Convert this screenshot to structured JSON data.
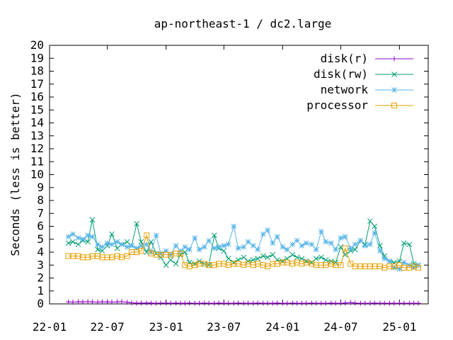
{
  "chart_data": {
    "type": "line",
    "title": "ap-northeast-1 / dc2.large",
    "xlabel": "",
    "ylabel": "Seconds (less is better)",
    "x_type": "date",
    "xlim": [
      "2022-01-01",
      "2025-04-01"
    ],
    "ylim": [
      0,
      20
    ],
    "yticks": [
      0,
      1,
      2,
      3,
      4,
      5,
      6,
      7,
      8,
      9,
      10,
      11,
      12,
      13,
      14,
      15,
      16,
      17,
      18,
      19,
      20
    ],
    "xticks": [
      {
        "value": "2022-01-01",
        "label": "22-01"
      },
      {
        "value": "2022-07-01",
        "label": "22-07"
      },
      {
        "value": "2023-01-01",
        "label": "23-01"
      },
      {
        "value": "2023-07-01",
        "label": "23-07"
      },
      {
        "value": "2024-01-01",
        "label": "24-01"
      },
      {
        "value": "2024-07-01",
        "label": "24-07"
      },
      {
        "value": "2025-01-01",
        "label": "25-01"
      }
    ],
    "grid": false,
    "legend_position": "top-right",
    "series": [
      {
        "name": "disk(r)",
        "color": "#9400d3",
        "marker": "plus",
        "x": [
          "2022-03-01",
          "2022-03-15",
          "2022-04-01",
          "2022-04-15",
          "2022-05-01",
          "2022-05-15",
          "2022-06-01",
          "2022-06-15",
          "2022-07-01",
          "2022-07-15",
          "2022-08-01",
          "2022-08-15",
          "2022-09-01",
          "2022-09-15",
          "2022-10-01",
          "2022-10-15",
          "2022-11-01",
          "2022-11-15",
          "2022-12-01",
          "2022-12-15",
          "2023-01-01",
          "2023-01-15",
          "2023-02-01",
          "2023-02-15",
          "2023-03-01",
          "2023-03-15",
          "2023-04-01",
          "2023-04-15",
          "2023-05-01",
          "2023-05-15",
          "2023-06-01",
          "2023-06-15",
          "2023-07-01",
          "2023-07-15",
          "2023-08-01",
          "2023-08-15",
          "2023-09-01",
          "2023-09-15",
          "2023-10-01",
          "2023-10-15",
          "2023-11-01",
          "2023-11-15",
          "2023-12-01",
          "2023-12-15",
          "2024-01-01",
          "2024-01-15",
          "2024-02-01",
          "2024-02-15",
          "2024-03-01",
          "2024-03-15",
          "2024-04-01",
          "2024-04-15",
          "2024-05-01",
          "2024-05-15",
          "2024-06-01",
          "2024-06-15",
          "2024-07-01",
          "2024-07-15",
          "2024-08-01",
          "2024-08-15",
          "2024-09-01",
          "2024-09-15",
          "2024-10-01",
          "2024-10-15",
          "2024-11-01",
          "2024-11-15",
          "2024-12-01",
          "2024-12-15",
          "2025-01-01",
          "2025-01-15",
          "2025-02-01",
          "2025-02-15",
          "2025-03-01"
        ],
        "values": [
          0.15,
          0.14,
          0.16,
          0.15,
          0.17,
          0.15,
          0.14,
          0.16,
          0.15,
          0.14,
          0.15,
          0.17,
          0.13,
          0.08,
          0.06,
          0.06,
          0.07,
          0.06,
          0.05,
          0.06,
          0.06,
          0.05,
          0.06,
          0.05,
          0.05,
          0.06,
          0.05,
          0.05,
          0.06,
          0.05,
          0.05,
          0.06,
          0.05,
          0.05,
          0.05,
          0.06,
          0.05,
          0.05,
          0.05,
          0.06,
          0.05,
          0.05,
          0.05,
          0.06,
          0.05,
          0.05,
          0.06,
          0.05,
          0.05,
          0.05,
          0.06,
          0.05,
          0.05,
          0.05,
          0.06,
          0.05,
          0.05,
          0.07,
          0.1,
          0.06,
          0.05,
          0.05,
          0.05,
          0.06,
          0.05,
          0.05,
          0.05,
          0.05,
          0.05,
          0.05,
          0.05,
          0.05,
          0.05
        ]
      },
      {
        "name": "disk(rw)",
        "color": "#009e73",
        "marker": "cross",
        "x": [
          "2022-03-01",
          "2022-03-15",
          "2022-04-01",
          "2022-04-15",
          "2022-05-01",
          "2022-05-15",
          "2022-06-01",
          "2022-06-15",
          "2022-07-01",
          "2022-07-15",
          "2022-08-01",
          "2022-08-15",
          "2022-09-01",
          "2022-09-15",
          "2022-10-01",
          "2022-10-15",
          "2022-11-01",
          "2022-11-15",
          "2022-12-01",
          "2022-12-15",
          "2023-01-01",
          "2023-01-15",
          "2023-02-01",
          "2023-02-15",
          "2023-03-01",
          "2023-03-15",
          "2023-04-01",
          "2023-04-15",
          "2023-05-01",
          "2023-05-15",
          "2023-06-01",
          "2023-06-15",
          "2023-07-01",
          "2023-07-15",
          "2023-08-01",
          "2023-08-15",
          "2023-09-01",
          "2023-09-15",
          "2023-10-01",
          "2023-10-15",
          "2023-11-01",
          "2023-11-15",
          "2023-12-01",
          "2023-12-15",
          "2024-01-01",
          "2024-01-15",
          "2024-02-01",
          "2024-02-15",
          "2024-03-01",
          "2024-03-15",
          "2024-04-01",
          "2024-04-15",
          "2024-05-01",
          "2024-05-15",
          "2024-06-01",
          "2024-06-15",
          "2024-07-01",
          "2024-07-15",
          "2024-08-01",
          "2024-08-15",
          "2024-09-01",
          "2024-09-15",
          "2024-10-01",
          "2024-10-15",
          "2024-11-01",
          "2024-11-15",
          "2024-12-01",
          "2024-12-15",
          "2025-01-01",
          "2025-01-15",
          "2025-02-01",
          "2025-02-15",
          "2025-03-01"
        ],
        "values": [
          4.7,
          4.8,
          4.6,
          4.9,
          4.8,
          6.5,
          4.2,
          4.1,
          4.5,
          5.4,
          4.3,
          4.6,
          4.8,
          4.5,
          6.2,
          4.8,
          4.0,
          4.8,
          3.9,
          3.6,
          3.0,
          3.4,
          3.1,
          3.8,
          4.0,
          3.2,
          3.1,
          3.3,
          3.1,
          3.0,
          5.3,
          4.3,
          4.1,
          3.5,
          3.2,
          3.4,
          3.6,
          3.3,
          3.4,
          3.5,
          3.7,
          3.6,
          3.8,
          3.4,
          3.3,
          3.5,
          3.8,
          3.6,
          3.5,
          3.3,
          3.2,
          3.5,
          3.6,
          3.4,
          3.3,
          3.2,
          4.4,
          3.8,
          4.1,
          4.2,
          4.9,
          4.6,
          6.4,
          6.0,
          4.5,
          3.7,
          3.3,
          3.2,
          3.3,
          4.7,
          4.6,
          3.1,
          3.0
        ]
      },
      {
        "name": "network",
        "color": "#56b4e9",
        "marker": "star",
        "x": [
          "2022-03-01",
          "2022-03-15",
          "2022-04-01",
          "2022-04-15",
          "2022-05-01",
          "2022-05-15",
          "2022-06-01",
          "2022-06-15",
          "2022-07-01",
          "2022-07-15",
          "2022-08-01",
          "2022-08-15",
          "2022-09-01",
          "2022-09-15",
          "2022-10-01",
          "2022-10-15",
          "2022-11-01",
          "2022-11-15",
          "2022-12-01",
          "2022-12-15",
          "2023-01-01",
          "2023-01-15",
          "2023-02-01",
          "2023-02-15",
          "2023-03-01",
          "2023-03-15",
          "2023-04-01",
          "2023-04-15",
          "2023-05-01",
          "2023-05-15",
          "2023-06-01",
          "2023-06-15",
          "2023-07-01",
          "2023-07-15",
          "2023-08-01",
          "2023-08-15",
          "2023-09-01",
          "2023-09-15",
          "2023-10-01",
          "2023-10-15",
          "2023-11-01",
          "2023-11-15",
          "2023-12-01",
          "2023-12-15",
          "2024-01-01",
          "2024-01-15",
          "2024-02-01",
          "2024-02-15",
          "2024-03-01",
          "2024-03-15",
          "2024-04-01",
          "2024-04-15",
          "2024-05-01",
          "2024-05-15",
          "2024-06-01",
          "2024-06-15",
          "2024-07-01",
          "2024-07-15",
          "2024-08-01",
          "2024-08-15",
          "2024-09-01",
          "2024-09-15",
          "2024-10-01",
          "2024-10-15",
          "2024-11-01",
          "2024-11-15",
          "2024-12-01",
          "2024-12-15",
          "2025-01-01",
          "2025-01-15",
          "2025-02-01",
          "2025-02-15",
          "2025-03-01"
        ],
        "values": [
          5.2,
          5.4,
          5.1,
          5.0,
          5.3,
          5.2,
          4.6,
          4.4,
          4.7,
          4.6,
          4.8,
          4.6,
          4.4,
          4.5,
          4.3,
          4.5,
          4.6,
          4.0,
          5.3,
          3.9,
          4.1,
          3.8,
          4.5,
          4.1,
          4.4,
          4.2,
          5.1,
          4.2,
          4.4,
          4.9,
          4.3,
          4.4,
          4.5,
          4.6,
          6.0,
          4.3,
          4.4,
          4.8,
          4.5,
          4.2,
          5.4,
          5.7,
          4.7,
          5.2,
          4.4,
          4.2,
          4.6,
          4.9,
          4.5,
          4.7,
          4.6,
          4.2,
          5.6,
          4.8,
          4.7,
          4.2,
          5.1,
          5.2,
          4.3,
          4.6,
          4.9,
          4.5,
          4.6,
          5.5,
          4.1,
          3.5,
          3.3,
          2.8,
          2.7,
          3.2,
          3.0,
          2.8,
          3.0
        ]
      },
      {
        "name": "processor",
        "color": "#e69f00",
        "marker": "square",
        "x": [
          "2022-03-01",
          "2022-03-15",
          "2022-04-01",
          "2022-04-15",
          "2022-05-01",
          "2022-05-15",
          "2022-06-01",
          "2022-06-15",
          "2022-07-01",
          "2022-07-15",
          "2022-08-01",
          "2022-08-15",
          "2022-09-01",
          "2022-09-15",
          "2022-10-01",
          "2022-10-15",
          "2022-11-01",
          "2022-11-15",
          "2022-12-01",
          "2022-12-15",
          "2023-01-01",
          "2023-01-15",
          "2023-02-01",
          "2023-02-15",
          "2023-03-01",
          "2023-03-15",
          "2023-04-01",
          "2023-04-15",
          "2023-05-01",
          "2023-05-15",
          "2023-06-01",
          "2023-06-15",
          "2023-07-01",
          "2023-07-15",
          "2023-08-01",
          "2023-08-15",
          "2023-09-01",
          "2023-09-15",
          "2023-10-01",
          "2023-10-15",
          "2023-11-01",
          "2023-11-15",
          "2023-12-01",
          "2023-12-15",
          "2024-01-01",
          "2024-01-15",
          "2024-02-01",
          "2024-02-15",
          "2024-03-01",
          "2024-03-15",
          "2024-04-01",
          "2024-04-15",
          "2024-05-01",
          "2024-05-15",
          "2024-06-01",
          "2024-06-15",
          "2024-07-01",
          "2024-07-15",
          "2024-08-01",
          "2024-08-15",
          "2024-09-01",
          "2024-09-15",
          "2024-10-01",
          "2024-10-15",
          "2024-11-01",
          "2024-11-15",
          "2024-12-01",
          "2024-12-15",
          "2025-01-01",
          "2025-01-15",
          "2025-02-01",
          "2025-02-15",
          "2025-03-01"
        ],
        "values": [
          3.7,
          3.7,
          3.7,
          3.6,
          3.6,
          3.7,
          3.7,
          3.6,
          3.6,
          3.6,
          3.7,
          3.6,
          3.7,
          4.0,
          4.0,
          4.1,
          5.3,
          3.9,
          3.8,
          3.8,
          3.8,
          3.8,
          3.9,
          3.9,
          3.0,
          2.9,
          3.0,
          3.1,
          3.1,
          3.0,
          3.0,
          3.1,
          3.1,
          3.0,
          3.1,
          3.1,
          3.0,
          3.1,
          3.0,
          3.1,
          3.0,
          2.9,
          3.1,
          3.1,
          3.2,
          3.2,
          3.1,
          3.2,
          3.1,
          3.2,
          3.1,
          3.0,
          3.0,
          3.0,
          3.1,
          3.0,
          3.0,
          4.3,
          3.1,
          2.9,
          2.9,
          2.9,
          2.9,
          2.9,
          2.9,
          2.8,
          2.9,
          2.9,
          3.0,
          2.8,
          2.8,
          2.9,
          2.8
        ]
      }
    ]
  }
}
